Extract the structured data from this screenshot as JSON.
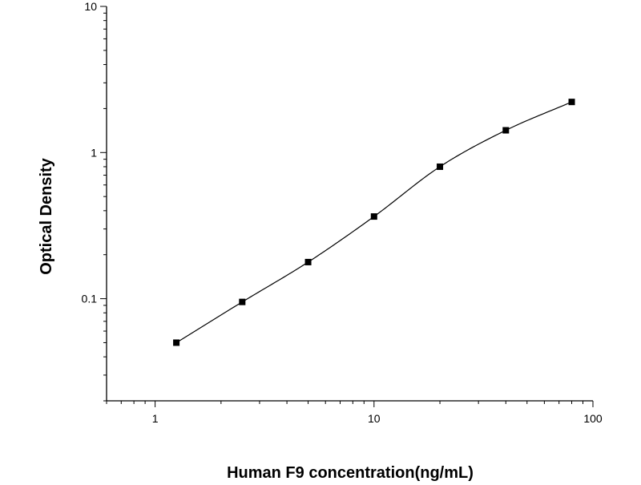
{
  "chart_data": {
    "type": "scatter",
    "xlabel": "Human F9 concentration(ng/mL)",
    "ylabel": "Optical Density",
    "x_scale": "log",
    "y_scale": "log",
    "xlim": [
      0.6,
      100
    ],
    "ylim": [
      0.02,
      10
    ],
    "x_ticks": [
      {
        "value": 1,
        "label": "1"
      },
      {
        "value": 10,
        "label": "10"
      },
      {
        "value": 100,
        "label": "100"
      }
    ],
    "y_ticks": [
      {
        "value": 0.1,
        "label": "0.1"
      },
      {
        "value": 1,
        "label": "1"
      },
      {
        "value": 10,
        "label": "10"
      }
    ],
    "grid": false,
    "series": [
      {
        "marker": "square",
        "color": "#000000",
        "fit_curve": true,
        "points": [
          {
            "x": 1.25,
            "y": 0.05
          },
          {
            "x": 2.5,
            "y": 0.095
          },
          {
            "x": 5,
            "y": 0.178
          },
          {
            "x": 10,
            "y": 0.365
          },
          {
            "x": 20,
            "y": 0.8
          },
          {
            "x": 40,
            "y": 1.42
          },
          {
            "x": 80,
            "y": 2.22
          }
        ]
      }
    ]
  }
}
